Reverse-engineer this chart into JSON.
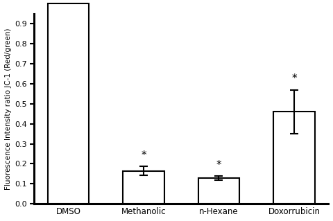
{
  "categories": [
    "DMSO",
    "Methanolic",
    "n-Hexane",
    "Doxorrubicin"
  ],
  "values": [
    1.0,
    0.165,
    0.128,
    0.46
  ],
  "errors": [
    0.0,
    0.022,
    0.01,
    0.11
  ],
  "ylabel": "Fluorescence Intensity ratio JC-1 (Red/green)",
  "ylim": [
    0.0,
    0.95
  ],
  "yticks": [
    0.0,
    0.1,
    0.2,
    0.3,
    0.4,
    0.5,
    0.6,
    0.7,
    0.8,
    0.9
  ],
  "bar_color": "#ffffff",
  "bar_edgecolor": "#000000",
  "bar_linewidth": 1.5,
  "error_color": "#000000",
  "asterisk_indices": [
    1,
    2,
    3
  ],
  "bar_width": 0.55,
  "axis_linewidth": 2.2,
  "background_color": "#ffffff"
}
